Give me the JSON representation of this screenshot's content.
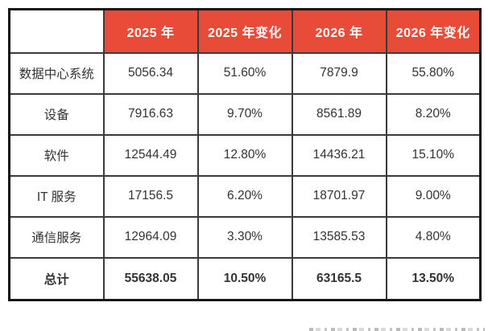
{
  "colors": {
    "header_bg": "#E84B37",
    "header_text": "#FFFFFF",
    "body_text": "#333333",
    "border_outer": "#161616",
    "border_inner": "#3A3A3A"
  },
  "table": {
    "header": {
      "c0": "",
      "c1": "2025 年",
      "c2": "2025 年变化",
      "c3": "2026 年",
      "c4": "2026 年变化"
    },
    "rows": [
      {
        "label": "数据中心系统",
        "v1": "5056.34",
        "v2": "51.60%",
        "v3": "7879.9",
        "v4": "55.80%"
      },
      {
        "label": "设备",
        "v1": "7916.63",
        "v2": "9.70%",
        "v3": "8561.89",
        "v4": "8.20%"
      },
      {
        "label": "软件",
        "v1": "12544.49",
        "v2": "12.80%",
        "v3": "14436.21",
        "v4": "15.10%"
      },
      {
        "label": "IT 服务",
        "v1": "17156.5",
        "v2": "6.20%",
        "v3": "18701.97",
        "v4": "9.00%"
      },
      {
        "label": "通信服务",
        "v1": "12964.09",
        "v2": "3.30%",
        "v3": "13585.53",
        "v4": "4.80%"
      },
      {
        "label": "总计",
        "v1": "55638.05",
        "v2": "10.50%",
        "v3": "63165.5",
        "v4": "13.50%"
      }
    ]
  },
  "chart_data": {
    "type": "table",
    "columns": [
      "",
      "2025 年",
      "2025 年变化",
      "2026 年",
      "2026 年变化"
    ],
    "row_labels": [
      "数据中心系统",
      "设备",
      "软件",
      "IT 服务",
      "通信服务",
      "总计"
    ],
    "series": [
      {
        "name": "2025 年",
        "values": [
          5056.34,
          7916.63,
          12544.49,
          17156.5,
          12964.09,
          55638.05
        ]
      },
      {
        "name": "2025 年变化",
        "values": [
          "51.60%",
          "9.70%",
          "12.80%",
          "6.20%",
          "3.30%",
          "10.50%"
        ]
      },
      {
        "name": "2026 年",
        "values": [
          7879.9,
          8561.89,
          14436.21,
          18701.97,
          13585.53,
          63165.5
        ]
      },
      {
        "name": "2026 年变化",
        "values": [
          "55.80%",
          "8.20%",
          "15.10%",
          "9.00%",
          "4.80%",
          "13.50%"
        ]
      }
    ],
    "notes": "last row 总计 is a bold totals row; header row has red background with white text"
  }
}
